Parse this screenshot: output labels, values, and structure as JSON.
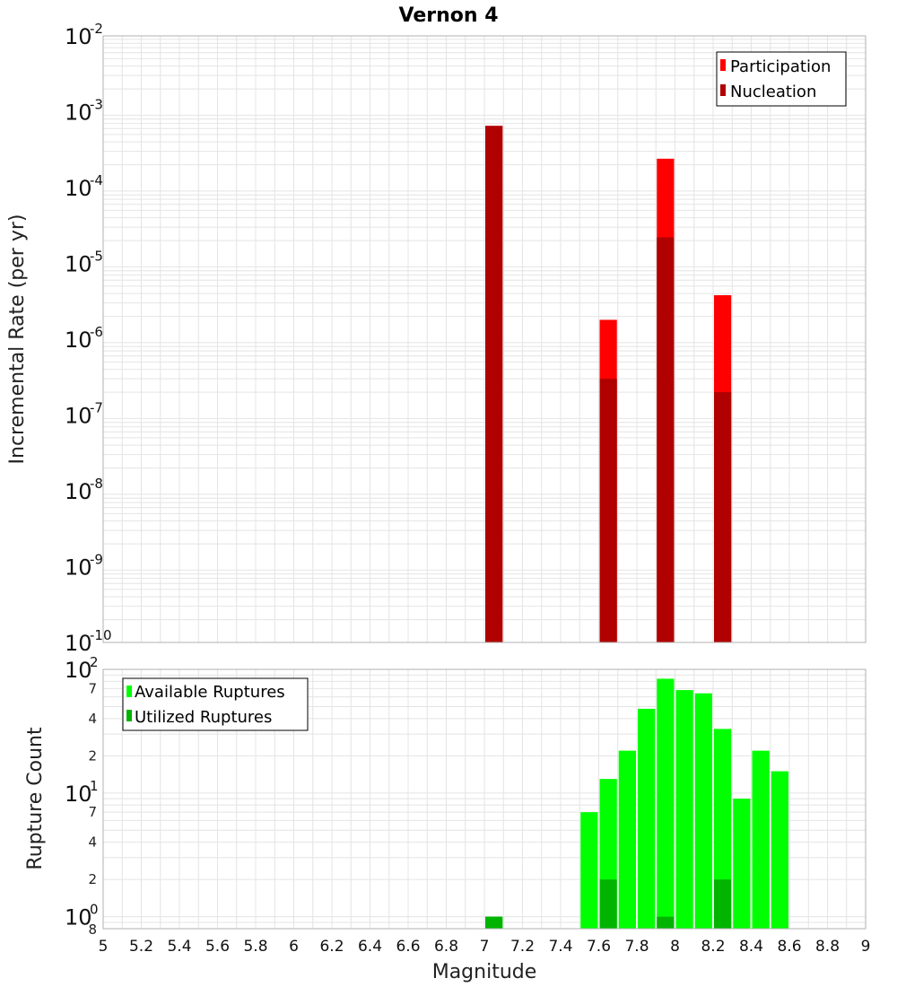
{
  "title": "Vernon 4",
  "colors": {
    "participation": "#ff0000",
    "nucleation": "#b00000",
    "available": "#00ff00",
    "utilized": "#00b400",
    "grid": "#e4e4e4",
    "frame": "#b0b0b0"
  },
  "chart_data": [
    {
      "type": "bar",
      "ylabel": "Incremental Rate (per yr)",
      "yscale": "log",
      "ylim": [
        1e-10,
        0.01
      ],
      "xlim": [
        5,
        9
      ],
      "grid": true,
      "legend_position": "top-right",
      "y_ticks": [
        {
          "base": "10",
          "exp": "-10"
        },
        {
          "base": "10",
          "exp": "-9"
        },
        {
          "base": "10",
          "exp": "-8"
        },
        {
          "base": "10",
          "exp": "-7"
        },
        {
          "base": "10",
          "exp": "-6"
        },
        {
          "base": "10",
          "exp": "-5"
        },
        {
          "base": "10",
          "exp": "-4"
        },
        {
          "base": "10",
          "exp": "-3"
        },
        {
          "base": "10",
          "exp": "-2"
        }
      ],
      "series": [
        {
          "name": "Participation",
          "color": "#ff0000",
          "points": [
            {
              "x": 7.05,
              "y": 0.00065
            },
            {
              "x": 7.65,
              "y": 1.8e-06
            },
            {
              "x": 7.95,
              "y": 0.00024
            },
            {
              "x": 8.25,
              "y": 3.8e-06
            }
          ]
        },
        {
          "name": "Nucleation",
          "color": "#b00000",
          "points": [
            {
              "x": 7.05,
              "y": 0.00065
            },
            {
              "x": 7.65,
              "y": 3e-07
            },
            {
              "x": 7.95,
              "y": 2.2e-05
            },
            {
              "x": 8.25,
              "y": 2e-07
            }
          ]
        }
      ]
    },
    {
      "type": "bar",
      "ylabel": "Rupture Count",
      "xlabel": "Magnitude",
      "yscale": "log",
      "ylim": [
        0.8,
        100
      ],
      "xlim": [
        5,
        9
      ],
      "grid": true,
      "legend_position": "top-left",
      "y_ticks": [
        {
          "base": "10",
          "exp": "0",
          "value": 1
        },
        {
          "base": "10",
          "exp": "1",
          "value": 10
        },
        {
          "base": "10",
          "exp": "2",
          "value": 100
        }
      ],
      "y_minor_labels": [
        {
          "label": "8",
          "value": 0.8
        },
        {
          "label": "2",
          "value": 2
        },
        {
          "label": "4",
          "value": 4
        },
        {
          "label": "7",
          "value": 7
        },
        {
          "label": "2",
          "value": 20
        },
        {
          "label": "4",
          "value": 40
        },
        {
          "label": "7",
          "value": 70
        }
      ],
      "x_ticks": [
        "5",
        "5.2",
        "5.4",
        "5.6",
        "5.8",
        "6",
        "6.2",
        "6.4",
        "6.6",
        "6.8",
        "7",
        "7.2",
        "7.4",
        "7.6",
        "7.8",
        "8",
        "8.2",
        "8.4",
        "8.6",
        "8.8",
        "9"
      ],
      "series": [
        {
          "name": "Available Ruptures",
          "color": "#00ff00",
          "points": [
            {
              "x": 7.05,
              "y": 1
            },
            {
              "x": 7.55,
              "y": 7
            },
            {
              "x": 7.65,
              "y": 13
            },
            {
              "x": 7.75,
              "y": 22
            },
            {
              "x": 7.85,
              "y": 48
            },
            {
              "x": 7.95,
              "y": 84
            },
            {
              "x": 8.05,
              "y": 68
            },
            {
              "x": 8.15,
              "y": 64
            },
            {
              "x": 8.25,
              "y": 33
            },
            {
              "x": 8.35,
              "y": 9
            },
            {
              "x": 8.45,
              "y": 22
            },
            {
              "x": 8.55,
              "y": 15
            }
          ]
        },
        {
          "name": "Utilized Ruptures",
          "color": "#00b400",
          "points": [
            {
              "x": 7.05,
              "y": 1
            },
            {
              "x": 7.65,
              "y": 2
            },
            {
              "x": 7.95,
              "y": 1
            },
            {
              "x": 8.25,
              "y": 2
            }
          ]
        }
      ]
    }
  ]
}
